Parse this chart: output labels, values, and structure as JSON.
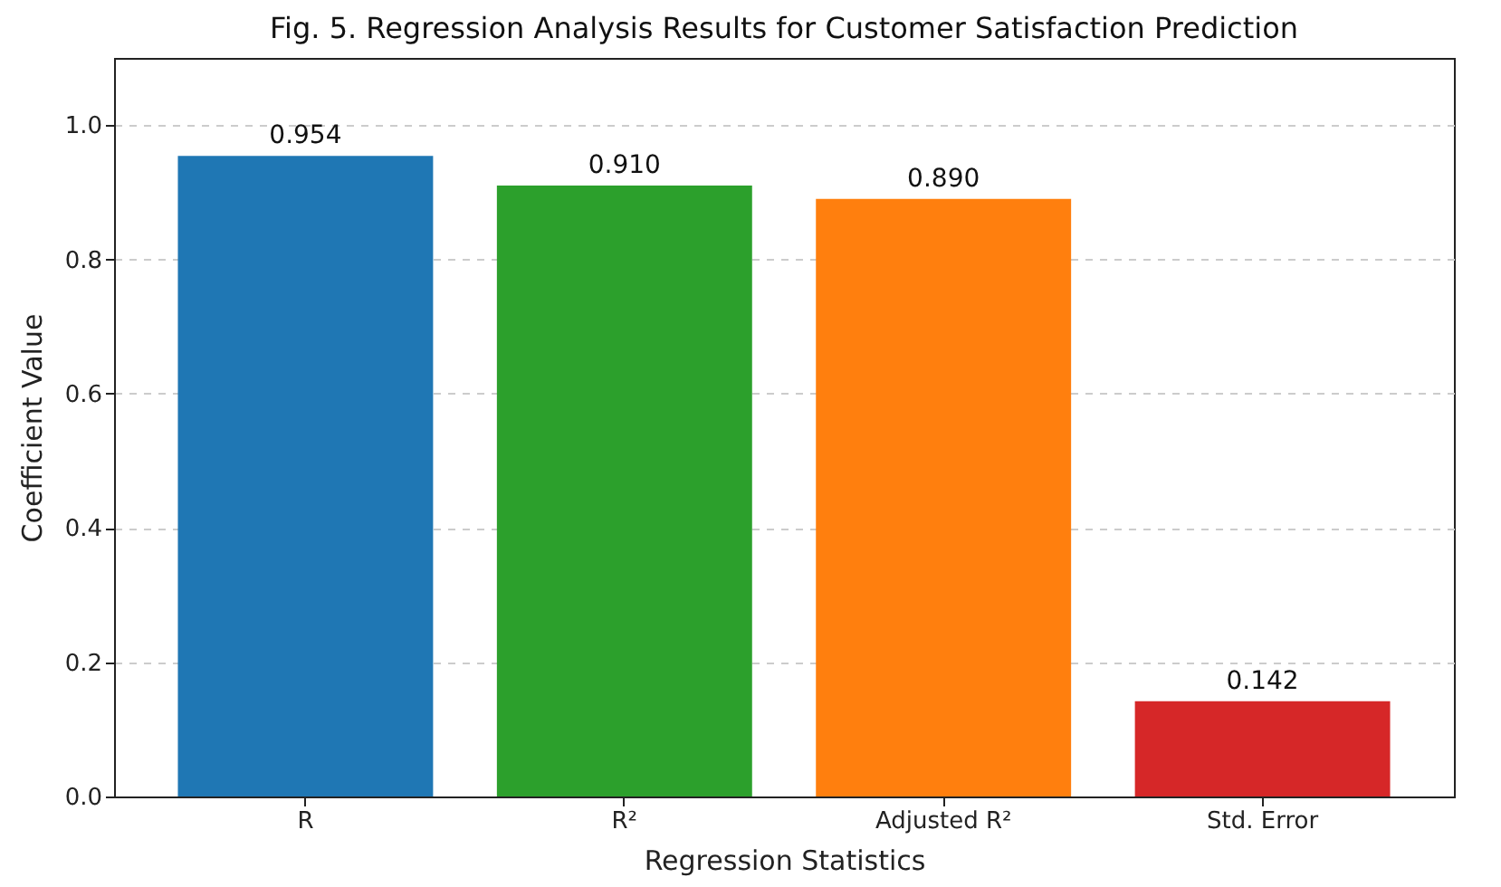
{
  "chart_data": {
    "type": "bar",
    "title": "Fig. 5. Regression Analysis Results for Customer Satisfaction Prediction",
    "xlabel": "Regression Statistics",
    "ylabel": "Coefficient Value",
    "categories": [
      "R",
      "R²",
      "Adjusted R²",
      "Std. Error"
    ],
    "values": [
      0.954,
      0.91,
      0.89,
      0.142
    ],
    "colors": [
      "#1f77b4",
      "#2ca02c",
      "#ff7f0e",
      "#d62728"
    ],
    "value_labels": [
      "0.954",
      "0.910",
      "0.890",
      "0.142"
    ],
    "ylim": [
      0,
      1.1
    ],
    "yticks": [
      {
        "value": 0,
        "label": "0.0"
      },
      {
        "value": 0.2,
        "label": "0.2"
      },
      {
        "value": 0.4,
        "label": "0.4"
      },
      {
        "value": 0.6,
        "label": "0.6"
      },
      {
        "value": 0.8,
        "label": "0.8"
      },
      {
        "value": 1,
        "label": "1.0"
      }
    ],
    "grid": "y"
  }
}
